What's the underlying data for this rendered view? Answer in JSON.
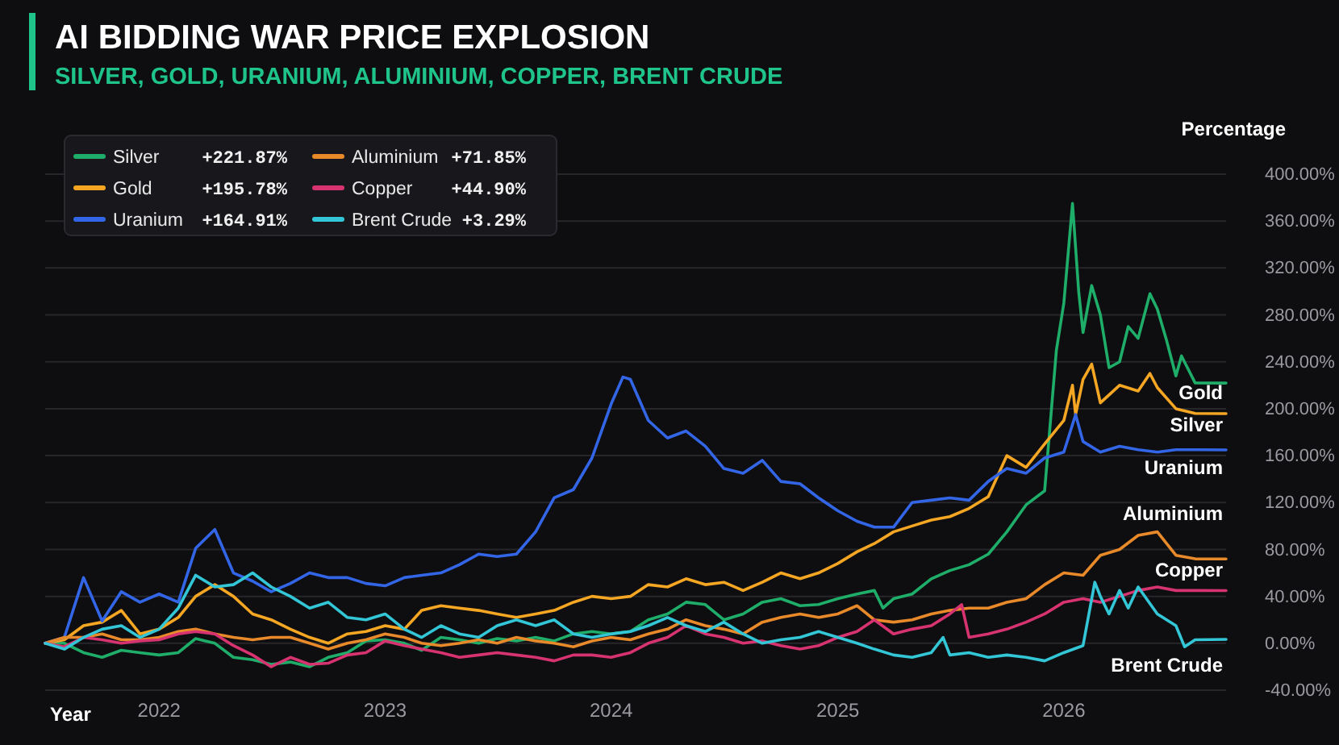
{
  "chart_data": {
    "type": "line",
    "title": "AI BIDDING WAR PRICE EXPLOSION",
    "subtitle": "SILVER, GOLD, URANIUM, ALUMINIUM, COPPER, BRENT CRUDE",
    "xlabel": "Year",
    "ylabel": "Percentage",
    "annotations": [
      "+221.87%",
      "+195.78%",
      "+164.91%",
      "+71.85%",
      "+44.90%",
      "+3.29%"
    ],
    "x": [
      "2021-07",
      "2021-08",
      "2021-09",
      "2021-10",
      "2021-11",
      "2021-12",
      "2022-01",
      "2022-02",
      "2022-03",
      "2022-04",
      "2022-05",
      "2022-06",
      "2022-07",
      "2022-08",
      "2022-09",
      "2022-10",
      "2022-11",
      "2022-12",
      "2023-01",
      "2023-02",
      "2023-03",
      "2023-04",
      "2023-05",
      "2023-06",
      "2023-07",
      "2023-08",
      "2023-09",
      "2023-10",
      "2023-11",
      "2023-12",
      "2024-01",
      "2024-02",
      "2024-03",
      "2024-04",
      "2024-05",
      "2024-06",
      "2024-07",
      "2024-08",
      "2024-09",
      "2024-10",
      "2024-11",
      "2024-12",
      "2025-01",
      "2025-02",
      "2025-03",
      "2025-04",
      "2025-05",
      "2025-06",
      "2025-07",
      "2025-08",
      "2025-09",
      "2025-10",
      "2025-11",
      "2025-12",
      "2026-01",
      "2026-02",
      "2026-03",
      "2026-04",
      "2026-05",
      "2026-06",
      "2026-07",
      "2026-08",
      "2026-09-20"
    ],
    "series": [
      {
        "name": "Silver",
        "color": "#1fae6a",
        "x": [
          "2021-07",
          "2021-08",
          "2021-09",
          "2021-10",
          "2021-11",
          "2021-12",
          "2022-01",
          "2022-02",
          "2022-03",
          "2022-04",
          "2022-05",
          "2022-06",
          "2022-07",
          "2022-08",
          "2022-09",
          "2022-10",
          "2022-11",
          "2022-12",
          "2023-01",
          "2023-02",
          "2023-03",
          "2023-04",
          "2023-05",
          "2023-06",
          "2023-07",
          "2023-08",
          "2023-09",
          "2023-10",
          "2023-11",
          "2023-12",
          "2024-01",
          "2024-02",
          "2024-03",
          "2024-04",
          "2024-05",
          "2024-06",
          "2024-07",
          "2024-08",
          "2024-09",
          "2024-10",
          "2024-11",
          "2024-12",
          "2025-01",
          "2025-02",
          "2025-03",
          "2025-03-15",
          "2025-04",
          "2025-05",
          "2025-06",
          "2025-07",
          "2025-08",
          "2025-09",
          "2025-10",
          "2025-11",
          "2025-12",
          "2025-12-20",
          "2026-01",
          "2026-01-15",
          "2026-01-25",
          "2026-02",
          "2026-02-15",
          "2026-03",
          "2026-03-15",
          "2026-04",
          "2026-04-15",
          "2026-05",
          "2026-05-20",
          "2026-06",
          "2026-06-15",
          "2026-07",
          "2026-07-10",
          "2026-08",
          "2026-09-20"
        ],
        "values": [
          0,
          0,
          -8,
          -12,
          -6,
          -8,
          -10,
          -8,
          4,
          0,
          -12,
          -14,
          -18,
          -16,
          -20,
          -12,
          -8,
          2,
          3,
          0,
          -6,
          5,
          3,
          0,
          4,
          2,
          5,
          2,
          8,
          10,
          8,
          10,
          20,
          25,
          35,
          33,
          20,
          25,
          35,
          38,
          32,
          33,
          38,
          42,
          45,
          30,
          38,
          42,
          55,
          62,
          67,
          76,
          95,
          118,
          130,
          250,
          290,
          375,
          300,
          265,
          305,
          280,
          235,
          240,
          270,
          260,
          298,
          285,
          260,
          228,
          245,
          222,
          221.87
        ]
      },
      {
        "name": "Gold",
        "color": "#f5a623",
        "x": [
          "2021-07",
          "2021-08",
          "2021-09",
          "2021-10",
          "2021-11",
          "2021-12",
          "2022-01",
          "2022-02",
          "2022-03",
          "2022-04",
          "2022-05",
          "2022-06",
          "2022-07",
          "2022-08",
          "2022-09",
          "2022-10",
          "2022-11",
          "2022-12",
          "2023-01",
          "2023-02",
          "2023-03",
          "2023-04",
          "2023-05",
          "2023-06",
          "2023-07",
          "2023-08",
          "2023-09",
          "2023-10",
          "2023-11",
          "2023-12",
          "2024-01",
          "2024-02",
          "2024-03",
          "2024-04",
          "2024-05",
          "2024-06",
          "2024-07",
          "2024-08",
          "2024-09",
          "2024-10",
          "2024-11",
          "2024-12",
          "2025-01",
          "2025-02",
          "2025-03",
          "2025-04",
          "2025-05",
          "2025-06",
          "2025-07",
          "2025-08",
          "2025-09",
          "2025-10",
          "2025-11",
          "2025-12",
          "2026-01",
          "2026-01-15",
          "2026-01-20",
          "2026-02",
          "2026-02-15",
          "2026-03",
          "2026-04",
          "2026-05",
          "2026-05-20",
          "2026-06",
          "2026-07",
          "2026-08",
          "2026-09-20"
        ],
        "values": [
          0,
          3,
          15,
          18,
          28,
          8,
          12,
          22,
          40,
          50,
          40,
          25,
          20,
          12,
          5,
          0,
          8,
          10,
          15,
          12,
          28,
          32,
          30,
          28,
          25,
          22,
          25,
          28,
          35,
          40,
          38,
          40,
          50,
          48,
          55,
          50,
          52,
          45,
          52,
          60,
          55,
          60,
          68,
          78,
          85,
          95,
          100,
          105,
          108,
          115,
          125,
          160,
          150,
          170,
          190,
          220,
          195,
          225,
          238,
          205,
          220,
          215,
          230,
          218,
          200,
          196,
          195.78
        ]
      },
      {
        "name": "Uranium",
        "color": "#3366e6",
        "x": [
          "2021-07",
          "2021-08",
          "2021-09",
          "2021-10",
          "2021-11",
          "2021-12",
          "2022-01",
          "2022-02",
          "2022-03",
          "2022-04",
          "2022-05",
          "2022-06",
          "2022-07",
          "2022-08",
          "2022-09",
          "2022-10",
          "2022-11",
          "2022-12",
          "2023-01",
          "2023-02",
          "2023-03",
          "2023-04",
          "2023-05",
          "2023-06",
          "2023-07",
          "2023-08",
          "2023-09",
          "2023-10",
          "2023-11",
          "2023-12",
          "2024-01",
          "2024-01-20",
          "2024-02",
          "2024-03",
          "2024-04",
          "2024-05",
          "2024-06",
          "2024-07",
          "2024-08",
          "2024-09",
          "2024-10",
          "2024-11",
          "2024-12",
          "2025-01",
          "2025-02",
          "2025-03",
          "2025-04",
          "2025-05",
          "2025-06",
          "2025-07",
          "2025-08",
          "2025-09",
          "2025-10",
          "2025-11",
          "2025-12",
          "2026-01",
          "2026-01-20",
          "2026-02",
          "2026-03",
          "2026-04",
          "2026-05",
          "2026-06",
          "2026-07",
          "2026-08",
          "2026-09-20"
        ],
        "values": [
          0,
          5,
          56,
          19,
          44,
          35,
          42,
          35,
          81,
          97,
          60,
          53,
          44,
          51,
          60,
          56,
          56,
          51,
          49,
          56,
          58,
          60,
          67,
          76,
          74,
          76,
          95,
          124,
          131,
          158,
          204,
          227,
          225,
          190,
          175,
          181,
          168,
          149,
          145,
          156,
          138,
          136,
          124,
          113,
          104,
          99,
          99,
          120,
          122,
          124,
          122,
          138,
          149,
          145,
          158,
          163,
          195,
          172,
          163,
          168,
          165,
          163,
          165,
          165,
          164.91
        ]
      },
      {
        "name": "Aluminium",
        "color": "#e8892a",
        "values": [
          0,
          5,
          5,
          8,
          3,
          3,
          5,
          10,
          12,
          8,
          5,
          3,
          5,
          5,
          0,
          -5,
          0,
          3,
          8,
          5,
          0,
          -2,
          0,
          3,
          0,
          5,
          2,
          0,
          -3,
          2,
          5,
          3,
          8,
          12,
          20,
          15,
          12,
          8,
          18,
          22,
          25,
          22,
          25,
          32,
          20,
          18,
          20,
          25,
          28,
          30,
          30,
          35,
          38,
          50,
          60,
          58,
          75,
          80,
          92,
          95,
          75,
          72,
          71.85
        ]
      },
      {
        "name": "Copper",
        "color": "#d63370",
        "x": [
          "2021-07",
          "2021-08",
          "2021-09",
          "2021-10",
          "2021-11",
          "2021-12",
          "2022-01",
          "2022-02",
          "2022-03",
          "2022-04",
          "2022-05",
          "2022-06",
          "2022-07",
          "2022-08",
          "2022-09",
          "2022-10",
          "2022-11",
          "2022-12",
          "2023-01",
          "2023-02",
          "2023-03",
          "2023-04",
          "2023-05",
          "2023-06",
          "2023-07",
          "2023-08",
          "2023-09",
          "2023-10",
          "2023-11",
          "2023-12",
          "2024-01",
          "2024-02",
          "2024-03",
          "2024-04",
          "2024-05",
          "2024-06",
          "2024-07",
          "2024-08",
          "2024-09",
          "2024-10",
          "2024-11",
          "2024-12",
          "2025-01",
          "2025-02",
          "2025-03",
          "2025-04",
          "2025-05",
          "2025-06",
          "2025-07",
          "2025-07-20",
          "2025-08",
          "2025-09",
          "2025-10",
          "2025-11",
          "2025-12",
          "2026-01",
          "2026-02",
          "2026-03",
          "2026-04",
          "2026-05",
          "2026-06",
          "2026-07",
          "2026-08",
          "2026-09-20"
        ],
        "values": [
          0,
          -3,
          5,
          3,
          0,
          2,
          3,
          8,
          10,
          8,
          -2,
          -10,
          -20,
          -12,
          -18,
          -17,
          -10,
          -8,
          2,
          -2,
          -5,
          -8,
          -12,
          -10,
          -8,
          -10,
          -12,
          -15,
          -10,
          -10,
          -12,
          -8,
          0,
          5,
          15,
          8,
          5,
          0,
          2,
          -2,
          -5,
          -2,
          5,
          10,
          20,
          8,
          12,
          15,
          25,
          33,
          5,
          8,
          12,
          18,
          25,
          35,
          38,
          35,
          40,
          45,
          48,
          45,
          45,
          44.9
        ]
      },
      {
        "name": "Brent Crude",
        "color": "#33c6d6",
        "x": [
          "2021-07",
          "2021-08",
          "2021-09",
          "2021-10",
          "2021-11",
          "2021-12",
          "2022-01",
          "2022-02",
          "2022-03",
          "2022-04",
          "2022-05",
          "2022-06",
          "2022-07",
          "2022-08",
          "2022-09",
          "2022-10",
          "2022-11",
          "2022-12",
          "2023-01",
          "2023-02",
          "2023-03",
          "2023-04",
          "2023-05",
          "2023-06",
          "2023-07",
          "2023-08",
          "2023-09",
          "2023-10",
          "2023-11",
          "2023-12",
          "2024-01",
          "2024-02",
          "2024-03",
          "2024-04",
          "2024-05",
          "2024-06",
          "2024-07",
          "2024-08",
          "2024-09",
          "2024-10",
          "2024-11",
          "2024-12",
          "2025-01",
          "2025-02",
          "2025-03",
          "2025-04",
          "2025-05",
          "2025-06",
          "2025-06-20",
          "2025-07",
          "2025-08",
          "2025-09",
          "2025-10",
          "2025-11",
          "2025-12",
          "2026-01",
          "2026-02",
          "2026-02-20",
          "2026-03",
          "2026-03-15",
          "2026-04",
          "2026-04-15",
          "2026-05",
          "2026-06",
          "2026-07",
          "2026-07-15",
          "2026-08",
          "2026-09-20"
        ],
        "values": [
          0,
          -5,
          5,
          12,
          15,
          5,
          12,
          30,
          58,
          48,
          50,
          60,
          48,
          40,
          30,
          35,
          22,
          20,
          25,
          12,
          5,
          15,
          8,
          5,
          15,
          20,
          15,
          20,
          8,
          5,
          8,
          10,
          15,
          22,
          15,
          10,
          18,
          8,
          0,
          3,
          5,
          10,
          5,
          0,
          -5,
          -10,
          -12,
          -8,
          5,
          -10,
          -8,
          -12,
          -10,
          -12,
          -15,
          -8,
          -2,
          52,
          40,
          25,
          45,
          30,
          48,
          25,
          15,
          -3,
          3,
          3.29
        ]
      }
    ],
    "xlim": [
      "2021-07",
      "2026-09-20"
    ],
    "xticks": [
      {
        "value": "2022",
        "label": "2022"
      },
      {
        "value": "2023",
        "label": "2023"
      },
      {
        "value": "2024",
        "label": "2024"
      },
      {
        "value": "2025",
        "label": "2025"
      },
      {
        "value": "2026",
        "label": "2026"
      }
    ],
    "ylim": [
      -40,
      400
    ],
    "yticks": [
      {
        "value": -40,
        "label": "-40.00%"
      },
      {
        "value": 0,
        "label": "0.00%"
      },
      {
        "value": 40,
        "label": "40.00%"
      },
      {
        "value": 80,
        "label": "80.00%"
      },
      {
        "value": 120,
        "label": "120.00%"
      },
      {
        "value": 160,
        "label": "160.00%"
      },
      {
        "value": 200,
        "label": "200.00%"
      },
      {
        "value": 240,
        "label": "240.00%"
      },
      {
        "value": 280,
        "label": "280.00%"
      },
      {
        "value": 320,
        "label": "320.00%"
      },
      {
        "value": 360,
        "label": "360.00%"
      },
      {
        "value": 400,
        "label": "400.00%"
      }
    ],
    "grid": "y",
    "legend": "top left",
    "line_style": "solid",
    "marker": "none"
  }
}
